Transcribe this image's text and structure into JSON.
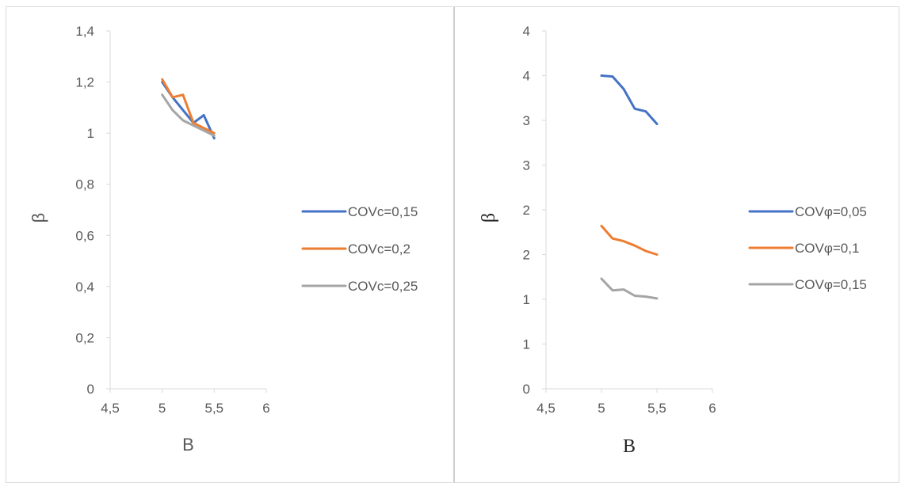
{
  "chart_data": [
    {
      "type": "line",
      "xlabel": "B",
      "ylabel": "β",
      "xlim": [
        4.5,
        6
      ],
      "ylim": [
        0,
        1.4
      ],
      "x_ticks": [
        "4,5",
        "5",
        "5,5",
        "6"
      ],
      "y_ticks": [
        "0",
        "0,2",
        "0,4",
        "0,6",
        "0,8",
        "1",
        "1,2",
        "1,4"
      ],
      "legend_position": "right",
      "series": [
        {
          "name": "COVc=0,15",
          "color": "#4472C4",
          "x": [
            5,
            5.1,
            5.2,
            5.3,
            5.4,
            5.5
          ],
          "y": [
            1.2,
            1.14,
            1.09,
            1.04,
            1.07,
            0.98
          ]
        },
        {
          "name": "COVc=0,2",
          "color": "#ED7D31",
          "x": [
            5,
            5.1,
            5.2,
            5.3,
            5.4,
            5.5
          ],
          "y": [
            1.21,
            1.14,
            1.15,
            1.04,
            1.02,
            1.0
          ]
        },
        {
          "name": "COVc=0,25",
          "color": "#A5A5A5",
          "x": [
            5,
            5.1,
            5.2,
            5.3,
            5.4,
            5.5
          ],
          "y": [
            1.15,
            1.09,
            1.05,
            1.03,
            1.01,
            0.99
          ]
        }
      ]
    },
    {
      "type": "line",
      "xlabel": "B",
      "ylabel": "β",
      "xlim": [
        4.5,
        6
      ],
      "ylim": [
        0,
        4
      ],
      "x_ticks": [
        "4,5",
        "5",
        "5,5",
        "6"
      ],
      "y_ticks": [
        "0",
        "1",
        "1",
        "2",
        "2",
        "3",
        "3",
        "4",
        "4"
      ],
      "legend_position": "right",
      "series": [
        {
          "name": "COVφ=0,05",
          "color": "#4472C4",
          "x": [
            5,
            5.1,
            5.2,
            5.3,
            5.4,
            5.5
          ],
          "y": [
            3.5,
            3.49,
            3.35,
            3.13,
            3.1,
            2.96
          ]
        },
        {
          "name": "COVφ=0,1",
          "color": "#ED7D31",
          "x": [
            5,
            5.1,
            5.2,
            5.3,
            5.4,
            5.5
          ],
          "y": [
            1.82,
            1.68,
            1.65,
            1.6,
            1.54,
            1.5
          ]
        },
        {
          "name": "COVφ=0,15",
          "color": "#A5A5A5",
          "x": [
            5,
            5.1,
            5.2,
            5.3,
            5.4,
            5.5
          ],
          "y": [
            1.23,
            1.1,
            1.11,
            1.04,
            1.03,
            1.01
          ]
        }
      ]
    }
  ]
}
